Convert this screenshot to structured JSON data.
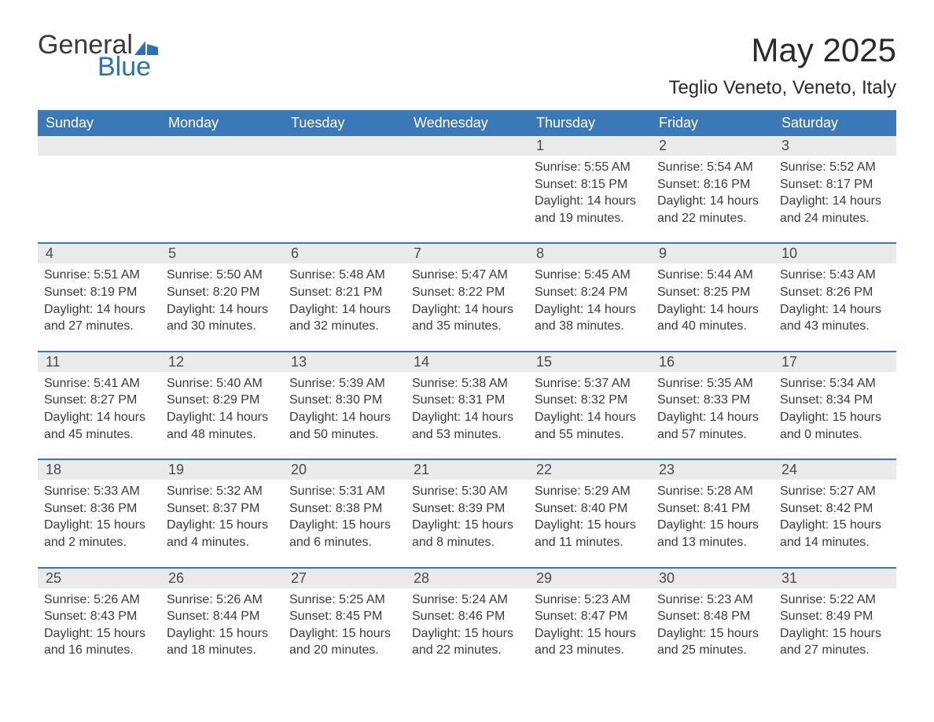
{
  "logo": {
    "text_general": "General",
    "text_blue": "Blue",
    "accent_color": "#2d72b8"
  },
  "title": "May 2025",
  "location": "Teglio Veneto, Veneto, Italy",
  "colors": {
    "header_bg": "#3b78b8",
    "header_text": "#ffffff",
    "daynum_bg": "#eaeaea",
    "week_border": "#3b78b8",
    "body_text": "#3a3a3a"
  },
  "days_of_week": [
    "Sunday",
    "Monday",
    "Tuesday",
    "Wednesday",
    "Thursday",
    "Friday",
    "Saturday"
  ],
  "weeks": [
    [
      {
        "n": "",
        "sunrise": "",
        "sunset": "",
        "daylight": ""
      },
      {
        "n": "",
        "sunrise": "",
        "sunset": "",
        "daylight": ""
      },
      {
        "n": "",
        "sunrise": "",
        "sunset": "",
        "daylight": ""
      },
      {
        "n": "",
        "sunrise": "",
        "sunset": "",
        "daylight": ""
      },
      {
        "n": "1",
        "sunrise": "Sunrise: 5:55 AM",
        "sunset": "Sunset: 8:15 PM",
        "daylight": "Daylight: 14 hours and 19 minutes."
      },
      {
        "n": "2",
        "sunrise": "Sunrise: 5:54 AM",
        "sunset": "Sunset: 8:16 PM",
        "daylight": "Daylight: 14 hours and 22 minutes."
      },
      {
        "n": "3",
        "sunrise": "Sunrise: 5:52 AM",
        "sunset": "Sunset: 8:17 PM",
        "daylight": "Daylight: 14 hours and 24 minutes."
      }
    ],
    [
      {
        "n": "4",
        "sunrise": "Sunrise: 5:51 AM",
        "sunset": "Sunset: 8:19 PM",
        "daylight": "Daylight: 14 hours and 27 minutes."
      },
      {
        "n": "5",
        "sunrise": "Sunrise: 5:50 AM",
        "sunset": "Sunset: 8:20 PM",
        "daylight": "Daylight: 14 hours and 30 minutes."
      },
      {
        "n": "6",
        "sunrise": "Sunrise: 5:48 AM",
        "sunset": "Sunset: 8:21 PM",
        "daylight": "Daylight: 14 hours and 32 minutes."
      },
      {
        "n": "7",
        "sunrise": "Sunrise: 5:47 AM",
        "sunset": "Sunset: 8:22 PM",
        "daylight": "Daylight: 14 hours and 35 minutes."
      },
      {
        "n": "8",
        "sunrise": "Sunrise: 5:45 AM",
        "sunset": "Sunset: 8:24 PM",
        "daylight": "Daylight: 14 hours and 38 minutes."
      },
      {
        "n": "9",
        "sunrise": "Sunrise: 5:44 AM",
        "sunset": "Sunset: 8:25 PM",
        "daylight": "Daylight: 14 hours and 40 minutes."
      },
      {
        "n": "10",
        "sunrise": "Sunrise: 5:43 AM",
        "sunset": "Sunset: 8:26 PM",
        "daylight": "Daylight: 14 hours and 43 minutes."
      }
    ],
    [
      {
        "n": "11",
        "sunrise": "Sunrise: 5:41 AM",
        "sunset": "Sunset: 8:27 PM",
        "daylight": "Daylight: 14 hours and 45 minutes."
      },
      {
        "n": "12",
        "sunrise": "Sunrise: 5:40 AM",
        "sunset": "Sunset: 8:29 PM",
        "daylight": "Daylight: 14 hours and 48 minutes."
      },
      {
        "n": "13",
        "sunrise": "Sunrise: 5:39 AM",
        "sunset": "Sunset: 8:30 PM",
        "daylight": "Daylight: 14 hours and 50 minutes."
      },
      {
        "n": "14",
        "sunrise": "Sunrise: 5:38 AM",
        "sunset": "Sunset: 8:31 PM",
        "daylight": "Daylight: 14 hours and 53 minutes."
      },
      {
        "n": "15",
        "sunrise": "Sunrise: 5:37 AM",
        "sunset": "Sunset: 8:32 PM",
        "daylight": "Daylight: 14 hours and 55 minutes."
      },
      {
        "n": "16",
        "sunrise": "Sunrise: 5:35 AM",
        "sunset": "Sunset: 8:33 PM",
        "daylight": "Daylight: 14 hours and 57 minutes."
      },
      {
        "n": "17",
        "sunrise": "Sunrise: 5:34 AM",
        "sunset": "Sunset: 8:34 PM",
        "daylight": "Daylight: 15 hours and 0 minutes."
      }
    ],
    [
      {
        "n": "18",
        "sunrise": "Sunrise: 5:33 AM",
        "sunset": "Sunset: 8:36 PM",
        "daylight": "Daylight: 15 hours and 2 minutes."
      },
      {
        "n": "19",
        "sunrise": "Sunrise: 5:32 AM",
        "sunset": "Sunset: 8:37 PM",
        "daylight": "Daylight: 15 hours and 4 minutes."
      },
      {
        "n": "20",
        "sunrise": "Sunrise: 5:31 AM",
        "sunset": "Sunset: 8:38 PM",
        "daylight": "Daylight: 15 hours and 6 minutes."
      },
      {
        "n": "21",
        "sunrise": "Sunrise: 5:30 AM",
        "sunset": "Sunset: 8:39 PM",
        "daylight": "Daylight: 15 hours and 8 minutes."
      },
      {
        "n": "22",
        "sunrise": "Sunrise: 5:29 AM",
        "sunset": "Sunset: 8:40 PM",
        "daylight": "Daylight: 15 hours and 11 minutes."
      },
      {
        "n": "23",
        "sunrise": "Sunrise: 5:28 AM",
        "sunset": "Sunset: 8:41 PM",
        "daylight": "Daylight: 15 hours and 13 minutes."
      },
      {
        "n": "24",
        "sunrise": "Sunrise: 5:27 AM",
        "sunset": "Sunset: 8:42 PM",
        "daylight": "Daylight: 15 hours and 14 minutes."
      }
    ],
    [
      {
        "n": "25",
        "sunrise": "Sunrise: 5:26 AM",
        "sunset": "Sunset: 8:43 PM",
        "daylight": "Daylight: 15 hours and 16 minutes."
      },
      {
        "n": "26",
        "sunrise": "Sunrise: 5:26 AM",
        "sunset": "Sunset: 8:44 PM",
        "daylight": "Daylight: 15 hours and 18 minutes."
      },
      {
        "n": "27",
        "sunrise": "Sunrise: 5:25 AM",
        "sunset": "Sunset: 8:45 PM",
        "daylight": "Daylight: 15 hours and 20 minutes."
      },
      {
        "n": "28",
        "sunrise": "Sunrise: 5:24 AM",
        "sunset": "Sunset: 8:46 PM",
        "daylight": "Daylight: 15 hours and 22 minutes."
      },
      {
        "n": "29",
        "sunrise": "Sunrise: 5:23 AM",
        "sunset": "Sunset: 8:47 PM",
        "daylight": "Daylight: 15 hours and 23 minutes."
      },
      {
        "n": "30",
        "sunrise": "Sunrise: 5:23 AM",
        "sunset": "Sunset: 8:48 PM",
        "daylight": "Daylight: 15 hours and 25 minutes."
      },
      {
        "n": "31",
        "sunrise": "Sunrise: 5:22 AM",
        "sunset": "Sunset: 8:49 PM",
        "daylight": "Daylight: 15 hours and 27 minutes."
      }
    ]
  ]
}
